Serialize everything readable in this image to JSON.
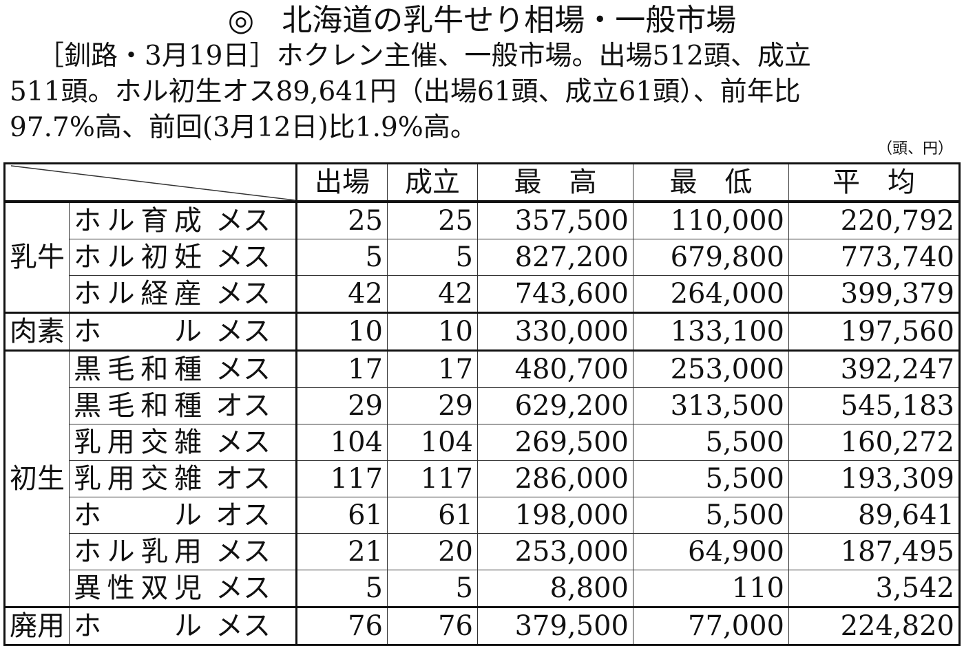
{
  "title": {
    "mark": "◎",
    "text": "北海道の乳牛せり相場・一般市場"
  },
  "paragraph": {
    "lines": [
      "［釧路・3月19日］ホクレン主催、一般市場。出場512頭、成立",
      "511頭。ホル初生オス89,641円（出場61頭、成立61頭）、前年比",
      "97.7%高、前回(3月12日)比1.9%高。"
    ]
  },
  "unit": "（頭、円）",
  "table": {
    "headers": [
      "出場",
      "成立",
      "最　高",
      "最　低",
      "平　均"
    ],
    "rows": [
      {
        "cat": "乳牛",
        "name": "ホル育成",
        "sex": "メス",
        "v": [
          "25",
          "25",
          "357,500",
          "110,000",
          "220,792"
        ]
      },
      {
        "cat": "",
        "name": "ホル初妊",
        "sex": "メス",
        "v": [
          "5",
          "5",
          "827,200",
          "679,800",
          "773,740"
        ]
      },
      {
        "cat": "",
        "name": "ホル経産",
        "sex": "メス",
        "v": [
          "42",
          "42",
          "743,600",
          "264,000",
          "399,379"
        ]
      },
      {
        "cat": "肉素",
        "name": "ホル",
        "sex": "メス",
        "v": [
          "10",
          "10",
          "330,000",
          "133,100",
          "197,560"
        ]
      },
      {
        "cat": "初生",
        "name": "黒毛和種",
        "sex": "メス",
        "v": [
          "17",
          "17",
          "480,700",
          "253,000",
          "392,247"
        ]
      },
      {
        "cat": "",
        "name": "黒毛和種",
        "sex": "オス",
        "v": [
          "29",
          "29",
          "629,200",
          "313,500",
          "545,183"
        ]
      },
      {
        "cat": "",
        "name": "乳用交雑",
        "sex": "メス",
        "v": [
          "104",
          "104",
          "269,500",
          "5,500",
          "160,272"
        ]
      },
      {
        "cat": "",
        "name": "乳用交雑",
        "sex": "オス",
        "v": [
          "117",
          "117",
          "286,000",
          "5,500",
          "193,309"
        ]
      },
      {
        "cat": "",
        "name": "ホル",
        "sex": "オス",
        "v": [
          "61",
          "61",
          "198,000",
          "5,500",
          "89,641"
        ]
      },
      {
        "cat": "",
        "name": "ホル乳用",
        "sex": "メス",
        "v": [
          "21",
          "20",
          "253,000",
          "64,900",
          "187,495"
        ]
      },
      {
        "cat": "",
        "name": "異性双児",
        "sex": "メス",
        "v": [
          "5",
          "5",
          "8,800",
          "110",
          "3,542"
        ]
      },
      {
        "cat": "廃用",
        "name": "ホル",
        "sex": "メス",
        "v": [
          "76",
          "76",
          "379,500",
          "77,000",
          "224,820"
        ]
      }
    ]
  }
}
